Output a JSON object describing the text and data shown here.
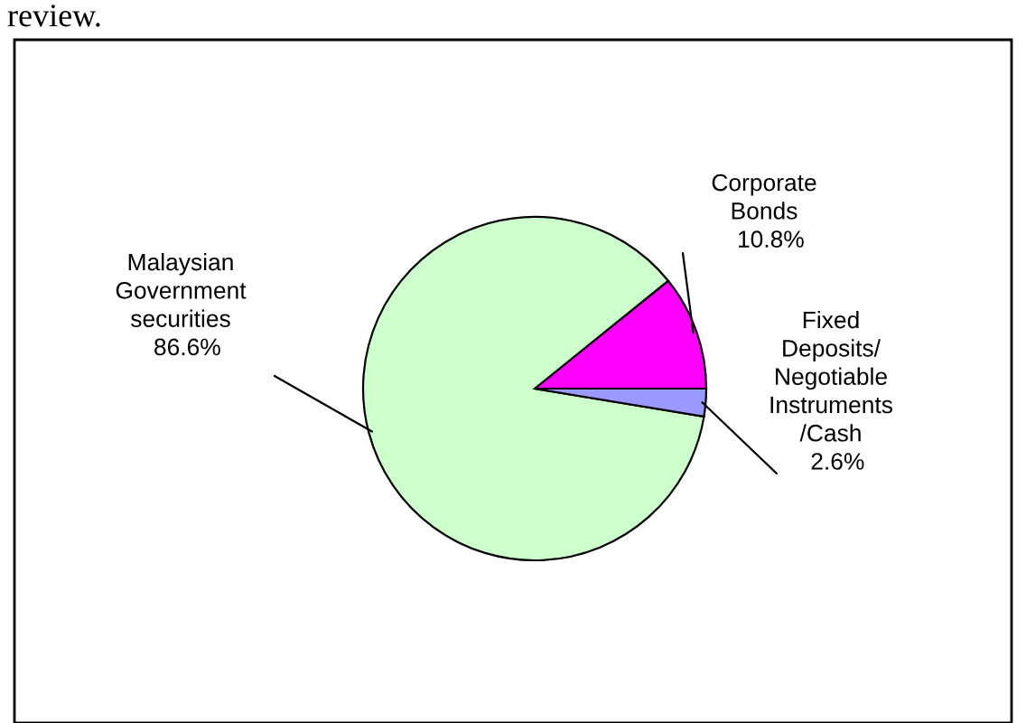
{
  "chart_data": {
    "type": "pie",
    "annotations": [
      "review."
    ],
    "categories": [
      "Corporate\nBonds",
      "Malaysian\nGovernment\nsecurities",
      "Fixed\nDeposits/\nNegotiable\nInstruments\n/Cash"
    ],
    "values": [
      10.8,
      86.6,
      2.6
    ],
    "value_labels": [
      "10.8%",
      "86.6%",
      "2.6%"
    ],
    "colors": [
      "#ff00ff",
      "#ccffcc",
      "#9999ff"
    ],
    "legend": false
  }
}
